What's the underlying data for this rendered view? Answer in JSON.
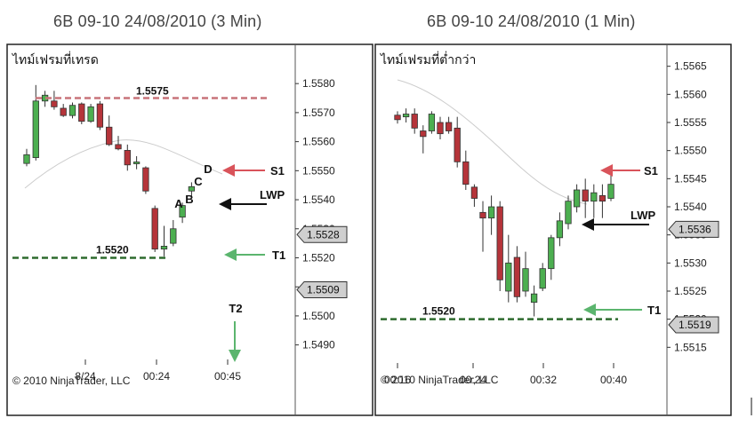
{
  "colors": {
    "up": "#4caf50",
    "down": "#b5343a",
    "resistance_line": "#c8747a",
    "support_line": "#2e6b2e",
    "arrow_red": "#d9535a",
    "arrow_black": "#111111",
    "arrow_green": "#5bb56e",
    "badge_fill": "#cfcfcf",
    "ma_line": "#cccccc",
    "frame": "#222222"
  },
  "chart_data": [
    {
      "type": "candlestick",
      "title": "6B 09-10  24/08/2010 (3 Min)",
      "frame_label": "ไทม์เฟรมที่เทรด",
      "copyright": "© 2010 NinjaTrader, LLC",
      "ylim": [
        1.5485,
        1.5588
      ],
      "y_ticks": [
        "1.5580",
        "1.5570",
        "1.5560",
        "1.5550",
        "1.5540",
        "1.5530",
        "1.5520",
        "1.5510",
        "1.5500",
        "1.5490"
      ],
      "x_ticks": [
        "8/24",
        "00:24",
        "00:45"
      ],
      "price_badges": [
        "1.5528",
        "1.5509"
      ],
      "candles": [
        {
          "o": 1.55525,
          "h": 1.55575,
          "l": 1.55515,
          "c": 1.55555
        },
        {
          "o": 1.55545,
          "h": 1.55795,
          "l": 1.55535,
          "c": 1.5574
        },
        {
          "o": 1.5574,
          "h": 1.55775,
          "l": 1.5572,
          "c": 1.5576
        },
        {
          "o": 1.5574,
          "h": 1.55775,
          "l": 1.5571,
          "c": 1.5572
        },
        {
          "o": 1.55715,
          "h": 1.5573,
          "l": 1.55685,
          "c": 1.5569
        },
        {
          "o": 1.5569,
          "h": 1.55735,
          "l": 1.5568,
          "c": 1.55725
        },
        {
          "o": 1.5573,
          "h": 1.55735,
          "l": 1.5566,
          "c": 1.5567
        },
        {
          "o": 1.5567,
          "h": 1.5573,
          "l": 1.55665,
          "c": 1.5572
        },
        {
          "o": 1.5573,
          "h": 1.5574,
          "l": 1.5564,
          "c": 1.5565
        },
        {
          "o": 1.5565,
          "h": 1.5569,
          "l": 1.55585,
          "c": 1.5559
        },
        {
          "o": 1.5559,
          "h": 1.5562,
          "l": 1.5557,
          "c": 1.55575
        },
        {
          "o": 1.5557,
          "h": 1.5559,
          "l": 1.555,
          "c": 1.5552
        },
        {
          "o": 1.5553,
          "h": 1.5555,
          "l": 1.55505,
          "c": 1.5553
        },
        {
          "o": 1.5551,
          "h": 1.55515,
          "l": 1.5542,
          "c": 1.5543
        },
        {
          "o": 1.5537,
          "h": 1.5538,
          "l": 1.5522,
          "c": 1.5523
        },
        {
          "o": 1.5523,
          "h": 1.5531,
          "l": 1.55205,
          "c": 1.5524
        },
        {
          "o": 1.5525,
          "h": 1.5533,
          "l": 1.5524,
          "c": 1.553
        },
        {
          "o": 1.5534,
          "h": 1.5539,
          "l": 1.5532,
          "c": 1.5538
        },
        {
          "o": 1.5543,
          "h": 1.5546,
          "l": 1.5541,
          "c": 1.55445
        }
      ],
      "levels": [
        {
          "name": "1.5575",
          "value": 1.5575,
          "kind": "resistance"
        },
        {
          "name": "1.5520",
          "value": 1.552,
          "kind": "support"
        }
      ],
      "annotations": {
        "candle_letters": [
          "A",
          "B",
          "C",
          "D"
        ],
        "s1": "S1",
        "lwp": "LWP",
        "t1": "T1",
        "t2": "T2"
      }
    },
    {
      "type": "candlestick",
      "title": "6B 09-10  24/08/2010 (1 Min)",
      "frame_label": "ไทม์เฟรมที่ต่ำกว่า",
      "copyright": "© 2010 NinjaTrader, LLC",
      "ylim": [
        1.5513,
        1.5567
      ],
      "y_ticks": [
        "1.5565",
        "1.5560",
        "1.5555",
        "1.5550",
        "1.5545",
        "1.5540",
        "1.5535",
        "1.5530",
        "1.5525",
        "1.5520",
        "1.5515"
      ],
      "x_ticks": [
        "00:16",
        "00:24",
        "00:32",
        "00:40"
      ],
      "price_badges": [
        "1.5536",
        "1.5519"
      ],
      "candles": [
        {
          "o": 1.55563,
          "h": 1.5557,
          "l": 1.55548,
          "c": 1.55555
        },
        {
          "o": 1.5556,
          "h": 1.55575,
          "l": 1.5555,
          "c": 1.55565
        },
        {
          "o": 1.55565,
          "h": 1.55575,
          "l": 1.5553,
          "c": 1.5554
        },
        {
          "o": 1.55535,
          "h": 1.55545,
          "l": 1.55495,
          "c": 1.55525
        },
        {
          "o": 1.55535,
          "h": 1.5557,
          "l": 1.5553,
          "c": 1.55565
        },
        {
          "o": 1.5555,
          "h": 1.5556,
          "l": 1.5552,
          "c": 1.5553
        },
        {
          "o": 1.5555,
          "h": 1.5556,
          "l": 1.5553,
          "c": 1.55535
        },
        {
          "o": 1.5554,
          "h": 1.5556,
          "l": 1.5547,
          "c": 1.5548
        },
        {
          "o": 1.5548,
          "h": 1.555,
          "l": 1.5543,
          "c": 1.5544
        },
        {
          "o": 1.55435,
          "h": 1.5544,
          "l": 1.554,
          "c": 1.55415
        },
        {
          "o": 1.5539,
          "h": 1.5541,
          "l": 1.5532,
          "c": 1.5538
        },
        {
          "o": 1.5538,
          "h": 1.5542,
          "l": 1.5535,
          "c": 1.554
        },
        {
          "o": 1.554,
          "h": 1.5541,
          "l": 1.5525,
          "c": 1.5527
        },
        {
          "o": 1.5525,
          "h": 1.5535,
          "l": 1.5523,
          "c": 1.553
        },
        {
          "o": 1.5531,
          "h": 1.5533,
          "l": 1.5523,
          "c": 1.5524
        },
        {
          "o": 1.5525,
          "h": 1.5532,
          "l": 1.5524,
          "c": 1.5529
        },
        {
          "o": 1.5523,
          "h": 1.5526,
          "l": 1.55205,
          "c": 1.55245
        },
        {
          "o": 1.55255,
          "h": 1.553,
          "l": 1.5525,
          "c": 1.5529
        },
        {
          "o": 1.5529,
          "h": 1.5535,
          "l": 1.5527,
          "c": 1.55345
        },
        {
          "o": 1.55345,
          "h": 1.5539,
          "l": 1.5533,
          "c": 1.55375
        },
        {
          "o": 1.5537,
          "h": 1.5542,
          "l": 1.5536,
          "c": 1.5541
        },
        {
          "o": 1.554,
          "h": 1.5544,
          "l": 1.5539,
          "c": 1.5543
        },
        {
          "o": 1.5543,
          "h": 1.5545,
          "l": 1.5538,
          "c": 1.5541
        },
        {
          "o": 1.5541,
          "h": 1.5544,
          "l": 1.5538,
          "c": 1.55425
        },
        {
          "o": 1.5542,
          "h": 1.5544,
          "l": 1.5538,
          "c": 1.5541
        },
        {
          "o": 1.55415,
          "h": 1.5547,
          "l": 1.5541,
          "c": 1.5544
        }
      ],
      "levels": [
        {
          "name": "1.5520",
          "value": 1.552,
          "kind": "support"
        }
      ],
      "annotations": {
        "s1": "S1",
        "lwp": "LWP",
        "t1": "T1"
      }
    }
  ]
}
